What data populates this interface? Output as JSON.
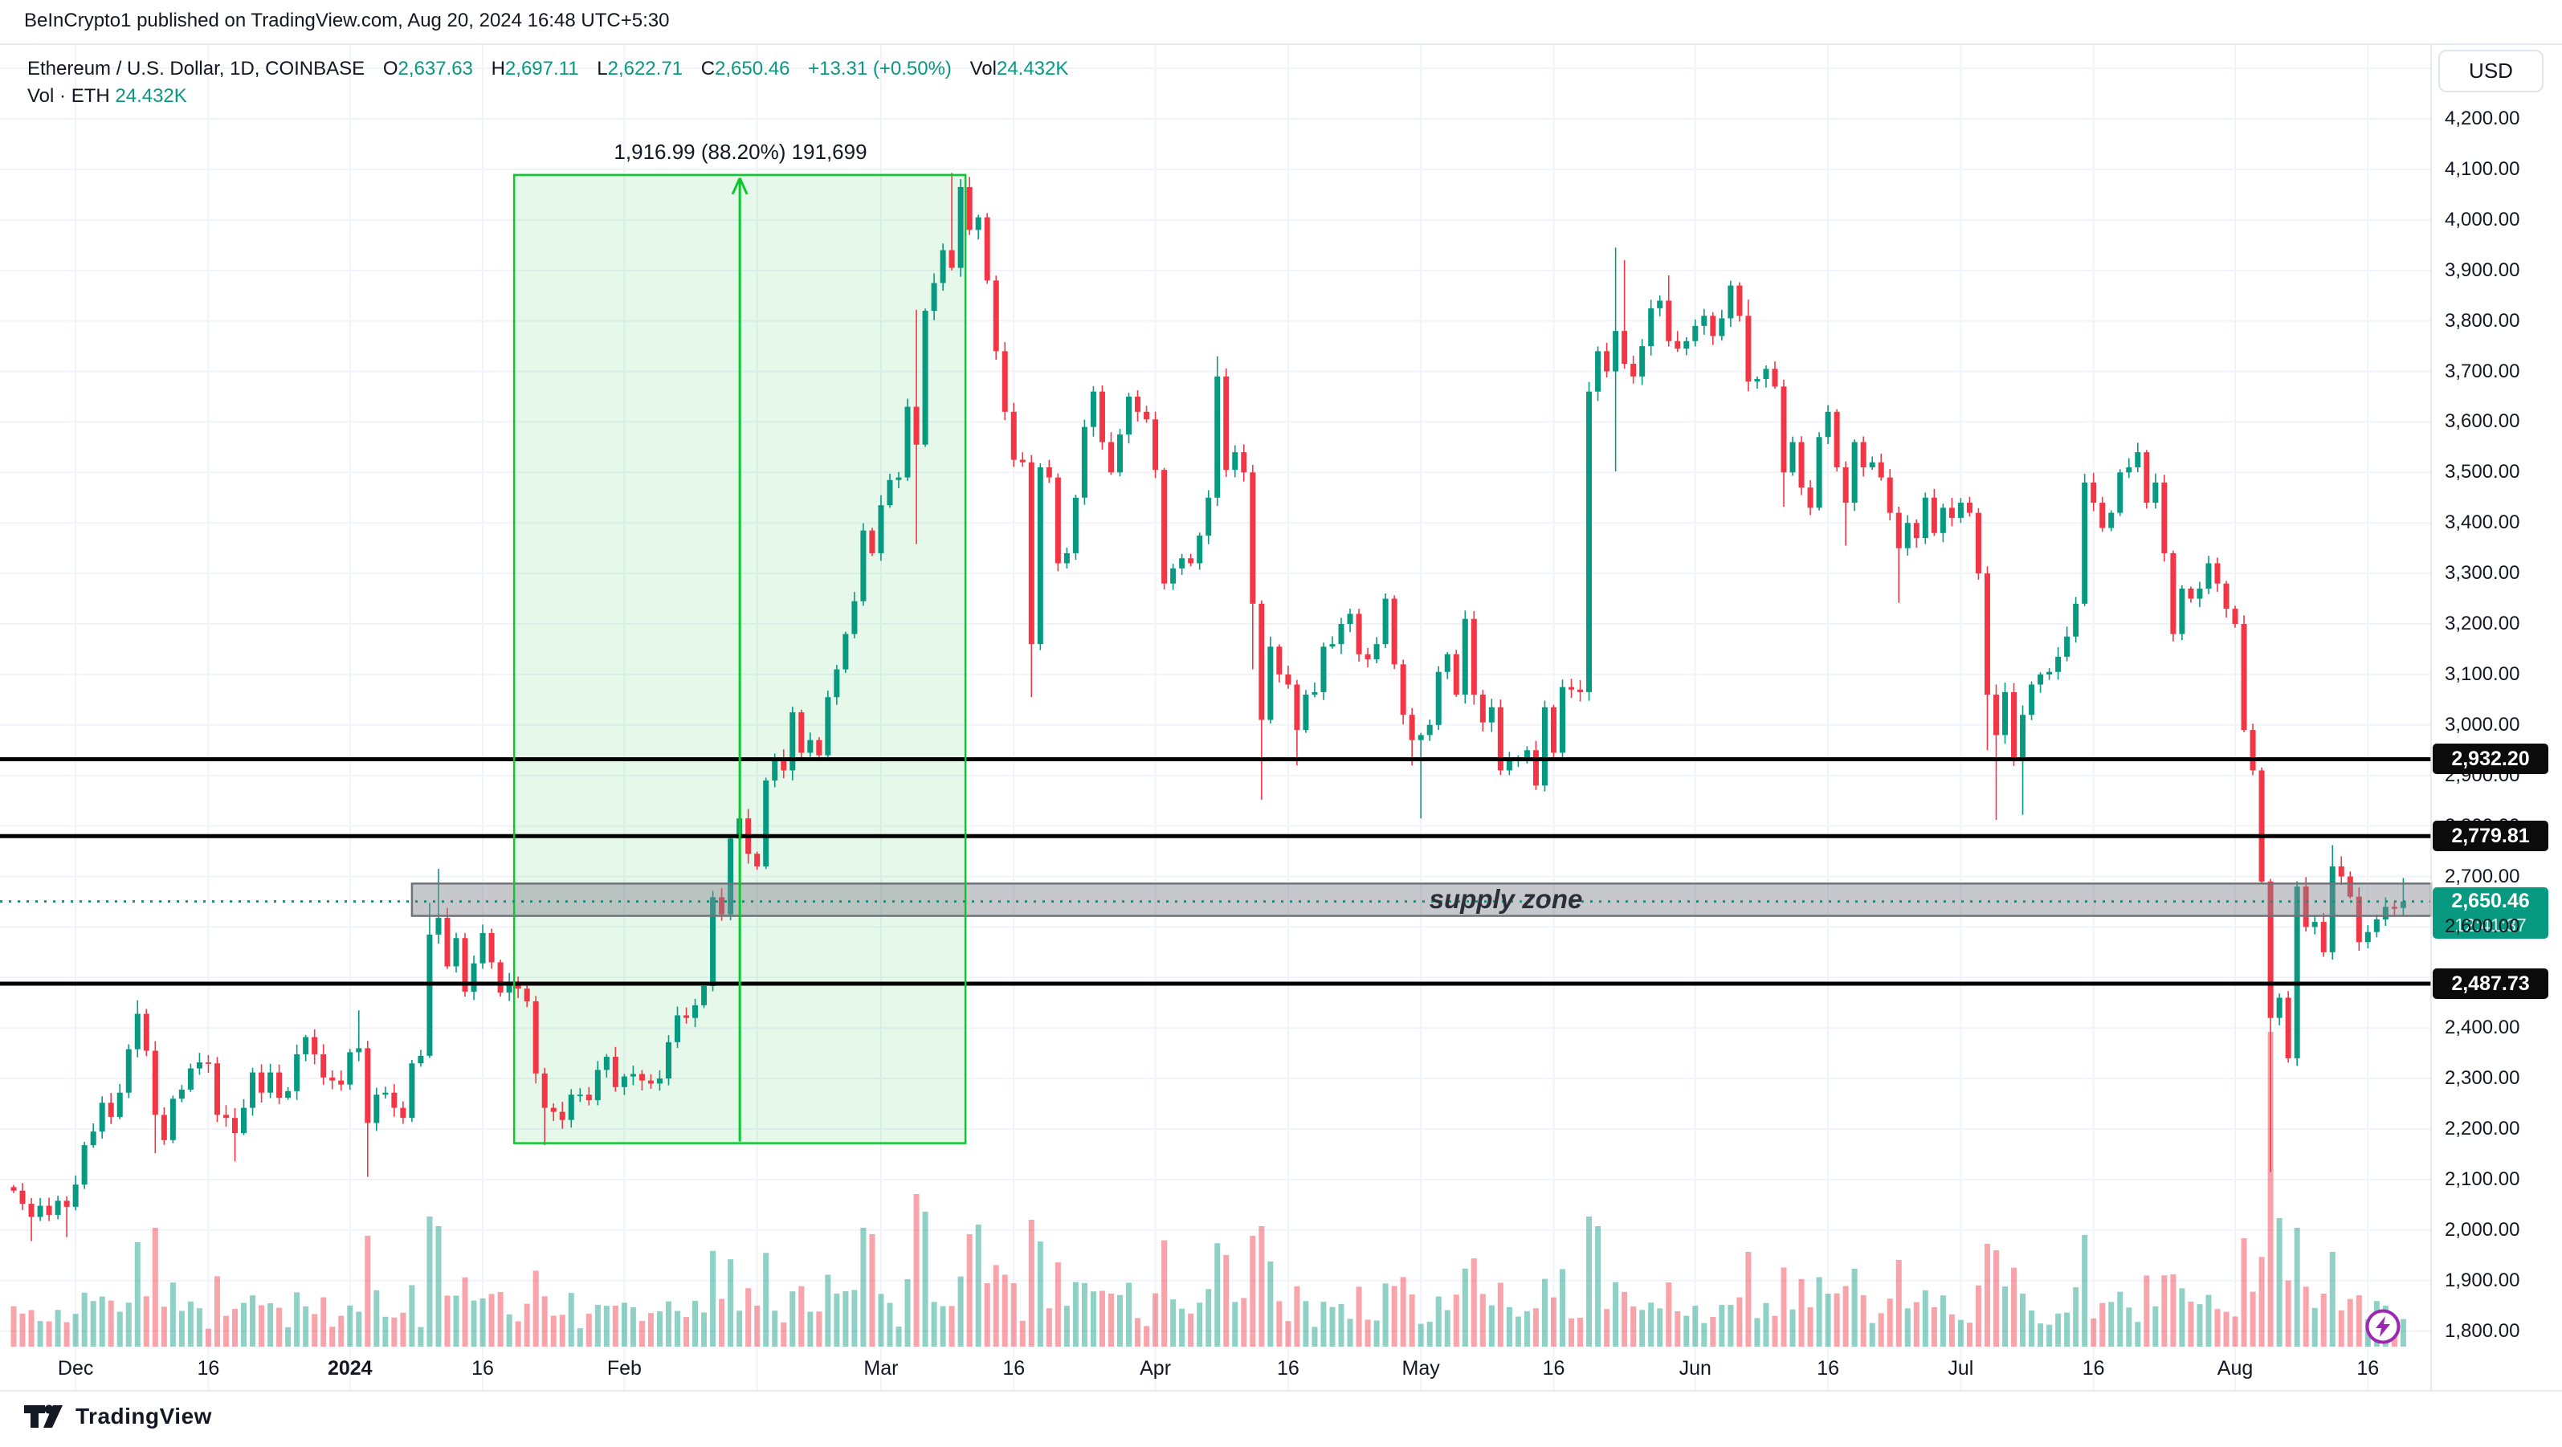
{
  "header": {
    "attribution": "BeInCrypto1 published on TradingView.com, Aug 20, 2024 16:48 UTC+5:30"
  },
  "legend": {
    "title": "Ethereum / U.S. Dollar, 1D, COINBASE",
    "o_label": "O",
    "o_value": "2,637.63",
    "h_label": "H",
    "h_value": "2,697.11",
    "l_label": "L",
    "l_value": "2,622.71",
    "c_label": "C",
    "c_value": "2,650.46",
    "change": "+13.31 (+0.50%)",
    "vol_label": "Vol",
    "vol_value": "24.432K",
    "vol_row_label": "Vol · ETH",
    "vol_row_value": "24.432K"
  },
  "price_scale": {
    "currency": "USD",
    "label_min": 1800,
    "label_max": 4200,
    "step": 100
  },
  "time_axis": {
    "labels": [
      {
        "i": 7,
        "text": "Dec"
      },
      {
        "i": 22,
        "text": "16"
      },
      {
        "i": 38,
        "text": "2024",
        "bold": true
      },
      {
        "i": 53,
        "text": "16"
      },
      {
        "i": 69,
        "text": "Feb"
      },
      {
        "i": 98,
        "text": "Mar"
      },
      {
        "i": 113,
        "text": "16"
      },
      {
        "i": 129,
        "text": "Apr"
      },
      {
        "i": 144,
        "text": "16"
      },
      {
        "i": 159,
        "text": "May"
      },
      {
        "i": 174,
        "text": "16"
      },
      {
        "i": 190,
        "text": "Jun"
      },
      {
        "i": 205,
        "text": "16"
      },
      {
        "i": 220,
        "text": "Jul"
      },
      {
        "i": 235,
        "text": "16"
      },
      {
        "i": 251,
        "text": "Aug"
      },
      {
        "i": 266,
        "text": "16"
      }
    ],
    "gridline_indices": [
      7,
      22,
      38,
      53,
      69,
      84,
      98,
      113,
      129,
      144,
      159,
      174,
      190,
      205,
      220,
      235,
      251,
      266
    ]
  },
  "levels": [
    {
      "price": 2932.2,
      "label": "2,932.20"
    },
    {
      "price": 2779.81,
      "label": "2,779.81"
    },
    {
      "price": 2487.73,
      "label": "2,487.73"
    }
  ],
  "current_price": {
    "value": 2650.46,
    "label": "2,650.46",
    "countdown": "12:41:37"
  },
  "supply_zone": {
    "label": "supply zone",
    "top_price": 2686,
    "bottom_price": 2622,
    "start_index": 45
  },
  "measurement": {
    "text": "1,916.99 (88.20%) 191,699",
    "from_index": 57,
    "to_index": 107,
    "top_price": 4089,
    "bottom_price": 2172
  },
  "footer": {
    "logo_text": "TradingView"
  },
  "chart_data": {
    "type": "candlestick",
    "title": "Ethereum / U.S. Dollar",
    "symbol": "ETH/USD",
    "interval": "1D",
    "exchange": "COINBASE",
    "start_date": "2023-11-24",
    "end_date": "2024-08-20",
    "ylim": [
      1760,
      4330
    ],
    "grid": true,
    "first_open": 2085,
    "closes": [
      2078,
      2052,
      2026,
      2048,
      2030,
      2058,
      2046,
      2090,
      2168,
      2195,
      2252,
      2224,
      2272,
      2358,
      2428,
      2355,
      2228,
      2178,
      2260,
      2278,
      2320,
      2332,
      2330,
      2228,
      2222,
      2192,
      2242,
      2312,
      2272,
      2312,
      2262,
      2275,
      2348,
      2382,
      2348,
      2302,
      2296,
      2288,
      2352,
      2360,
      2212,
      2268,
      2272,
      2242,
      2222,
      2330,
      2345,
      2585,
      2618,
      2522,
      2578,
      2472,
      2528,
      2588,
      2530,
      2470,
      2492,
      2478,
      2453,
      2310,
      2242,
      2234,
      2218,
      2268,
      2268,
      2257,
      2317,
      2343,
      2283,
      2304,
      2309,
      2296,
      2290,
      2300,
      2372,
      2425,
      2420,
      2445,
      2483,
      2659,
      2625,
      2775,
      2815,
      2745,
      2720,
      2890,
      2935,
      2910,
      3025,
      2945,
      2970,
      2940,
      3055,
      3110,
      3180,
      3245,
      3385,
      3340,
      3435,
      3485,
      3490,
      3630,
      3555,
      3820,
      3875,
      3940,
      3905,
      4065,
      3980,
      4005,
      3880,
      3740,
      3620,
      3525,
      3520,
      3160,
      3510,
      3490,
      3320,
      3340,
      3450,
      3590,
      3660,
      3560,
      3500,
      3575,
      3650,
      3620,
      3605,
      3505,
      3280,
      3310,
      3330,
      3320,
      3375,
      3450,
      3690,
      3505,
      3540,
      3500,
      3240,
      3010,
      3155,
      3100,
      3080,
      2990,
      3060,
      3065,
      3155,
      3160,
      3200,
      3220,
      3140,
      3130,
      3160,
      3250,
      3120,
      3020,
      2970,
      2980,
      3000,
      3105,
      3140,
      3060,
      3210,
      3060,
      3005,
      3035,
      2910,
      2930,
      2935,
      2950,
      2880,
      3035,
      2945,
      3075,
      3070,
      3065,
      3660,
      3740,
      3700,
      3780,
      3715,
      3690,
      3750,
      3825,
      3840,
      3760,
      3745,
      3760,
      3790,
      3810,
      3770,
      3805,
      3870,
      3810,
      3680,
      3685,
      3705,
      3670,
      3500,
      3560,
      3470,
      3430,
      3570,
      3620,
      3510,
      3440,
      3560,
      3510,
      3520,
      3490,
      3420,
      3350,
      3400,
      3370,
      3450,
      3380,
      3430,
      3410,
      3440,
      3420,
      3300,
      3060,
      2980,
      3065,
      2930,
      3020,
      3080,
      3100,
      3105,
      3135,
      3175,
      3240,
      3480,
      3440,
      3390,
      3420,
      3500,
      3510,
      3540,
      3440,
      3480,
      3340,
      3180,
      3270,
      3250,
      3270,
      3320,
      3280,
      3230,
      3200,
      2990,
      2910,
      2690,
      2420,
      2460,
      2340,
      2680,
      2600,
      2610,
      2550,
      2720,
      2700,
      2660,
      2570,
      2590,
      2615,
      2640,
      2636,
      2650
    ],
    "extreme_overrides": {
      "2": [
        null,
        1978
      ],
      "6": [
        null,
        1986
      ],
      "14": [
        2455,
        null
      ],
      "16": [
        null,
        2152
      ],
      "25": [
        null,
        2136
      ],
      "39": [
        2435,
        null
      ],
      "40": [
        null,
        2105
      ],
      "47": [
        2648,
        null
      ],
      "48": [
        2715,
        null
      ],
      "60": [
        null,
        2168
      ],
      "102": [
        3822,
        3358
      ],
      "106": [
        4093,
        null
      ],
      "108": [
        4085,
        null
      ],
      "109": [
        4010,
        null
      ],
      "115": [
        null,
        3055
      ],
      "136": [
        3730,
        null
      ],
      "140": [
        null,
        3110
      ],
      "141": [
        null,
        2852
      ],
      "145": [
        null,
        2920
      ],
      "158": [
        null,
        2920
      ],
      "159": [
        null,
        2815
      ],
      "178": [
        null,
        3048
      ],
      "181": [
        3945,
        3502
      ],
      "182": [
        3920,
        null
      ],
      "187": [
        3890,
        null
      ],
      "196": [
        3842,
        null
      ],
      "200": [
        null,
        3432
      ],
      "207": [
        null,
        3355
      ],
      "213": [
        null,
        3242
      ],
      "223": [
        null,
        2950
      ],
      "224": [
        null,
        2812
      ],
      "227": [
        null,
        2822
      ],
      "255": [
        2695,
        2115
      ],
      "258": [
        null,
        2325
      ],
      "262": [
        2762,
        null
      ]
    },
    "volume_overrides": {
      "14": 130,
      "16": 148,
      "40": 138,
      "47": 162,
      "48": 150,
      "96": 148,
      "97": 140,
      "102": 190,
      "103": 168,
      "108": 140,
      "109": 152,
      "115": 158,
      "140": 138,
      "141": 150,
      "178": 162,
      "179": 150,
      "196": 118,
      "213": 108,
      "223": 128,
      "224": 120,
      "252": 135,
      "255": 392,
      "256": 160,
      "258": 148,
      "262": 118
    },
    "last_candle": {
      "o": 2637.63,
      "h": 2697.11,
      "l": 2622.71,
      "c": 2650.46
    },
    "colors": {
      "up": "#089981",
      "down": "#f23645",
      "volume_up": "rgba(8,153,129,0.45)",
      "volume_down": "rgba(242,54,69,0.45)",
      "grid": "#f0f3fa",
      "frame": "#e0e3eb",
      "text": "#131722",
      "level_line": "#000000",
      "label_dark_bg": "#0b0b0b",
      "current_price": "#089981",
      "zone_fill": "rgba(130,133,142,0.45)",
      "zone_border": "#70737c",
      "box_fill": "rgba(52,199,89,0.13)",
      "box_border": "#0bc82f",
      "lightning_purple": "#9c27b0"
    }
  }
}
